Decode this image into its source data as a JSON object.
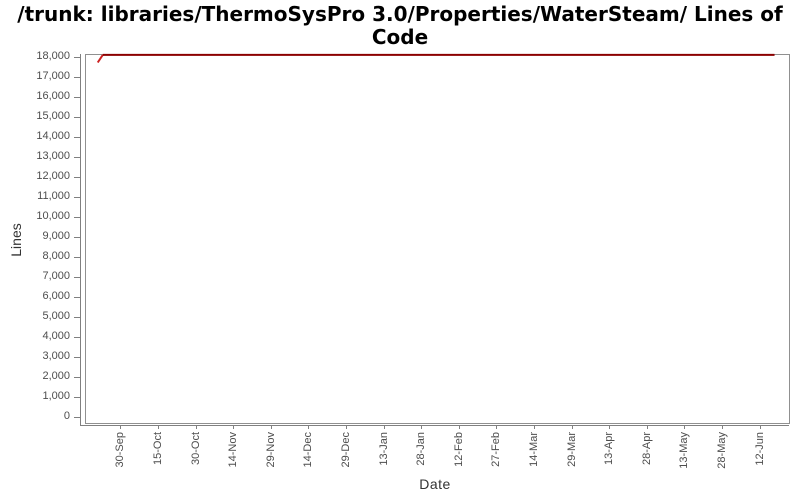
{
  "chart_data": {
    "type": "line",
    "title": "/trunk: libraries/ThermoSysPro 3.0/Properties/WaterSteam/ Lines of Code",
    "xlabel": "Date",
    "ylabel": "Lines",
    "x_tick_labels": [
      "30-Sep",
      "15-Oct",
      "30-Oct",
      "14-Nov",
      "29-Nov",
      "14-Dec",
      "29-Dec",
      "13-Jan",
      "28-Jan",
      "12-Feb",
      "27-Feb",
      "14-Mar",
      "29-Mar",
      "13-Apr",
      "28-Apr",
      "13-May",
      "28-May",
      "12-Jun"
    ],
    "x_tick_step_days": 15,
    "y_tick_labels": [
      "18,000",
      "17,000",
      "16,000",
      "15,000",
      "14,000",
      "13,000",
      "12,000",
      "11,000",
      "10,000",
      "9,000",
      "8,000",
      "7,000",
      "6,000",
      "5,000",
      "4,000",
      "3,000",
      "2,000",
      "1,000",
      "0"
    ],
    "y_tick_step": 1000,
    "ylim": [
      0,
      18200
    ],
    "grid": false,
    "legend": "none",
    "line_color": "#8b0000",
    "rise_color": "#cc2222",
    "axis_color": "#808080",
    "tick_label_color": "#4d4d4d",
    "series": [
      {
        "name": "Lines of Code",
        "points": [
          {
            "date": "21-Sep",
            "days_from_first_tick": -9,
            "value": 17700
          },
          {
            "date": "23-Sep",
            "days_from_first_tick": -7,
            "value": 18080
          },
          {
            "date": "18-Jun",
            "days_from_first_tick": 261,
            "value": 18080
          }
        ]
      }
    ]
  }
}
